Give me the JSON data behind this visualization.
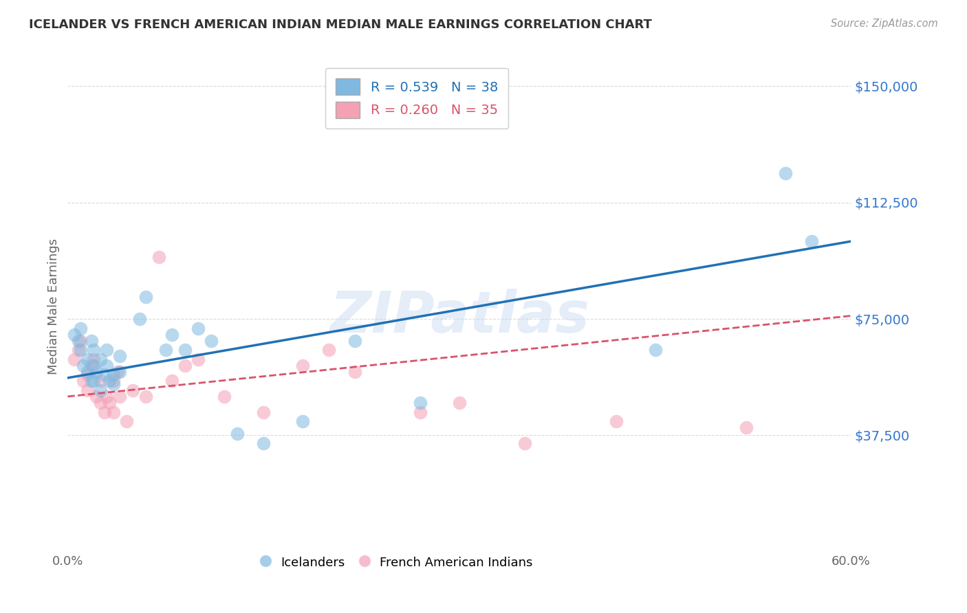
{
  "title": "ICELANDER VS FRENCH AMERICAN INDIAN MEDIAN MALE EARNINGS CORRELATION CHART",
  "source": "Source: ZipAtlas.com",
  "ylabel": "Median Male Earnings",
  "watermark": "ZIPatlas",
  "xlim": [
    0.0,
    0.6
  ],
  "ylim": [
    0,
    158000
  ],
  "yticks": [
    37500,
    75000,
    112500,
    150000
  ],
  "ytick_labels": [
    "$37,500",
    "$75,000",
    "$112,500",
    "$150,000"
  ],
  "xticks": [
    0.0,
    0.1,
    0.2,
    0.3,
    0.4,
    0.5,
    0.6
  ],
  "xtick_labels": [
    "0.0%",
    "",
    "",
    "",
    "",
    "",
    "60.0%"
  ],
  "blue_R": 0.539,
  "blue_N": 38,
  "pink_R": 0.26,
  "pink_N": 35,
  "blue_color": "#7fb9e0",
  "pink_color": "#f4a0b5",
  "blue_line_color": "#2171b5",
  "pink_line_color": "#d9536a",
  "grid_color": "#cccccc",
  "title_color": "#333333",
  "axis_label_color": "#666666",
  "ytick_color": "#3377cc",
  "xtick_color": "#666666",
  "bg_color": "#ffffff",
  "blue_scatter_x": [
    0.005,
    0.008,
    0.01,
    0.01,
    0.012,
    0.015,
    0.015,
    0.018,
    0.018,
    0.02,
    0.02,
    0.02,
    0.022,
    0.025,
    0.025,
    0.028,
    0.03,
    0.03,
    0.032,
    0.035,
    0.035,
    0.04,
    0.04,
    0.055,
    0.06,
    0.075,
    0.08,
    0.09,
    0.1,
    0.11,
    0.13,
    0.15,
    0.18,
    0.22,
    0.27,
    0.45,
    0.55,
    0.57
  ],
  "blue_scatter_y": [
    70000,
    68000,
    72000,
    65000,
    60000,
    62000,
    58000,
    68000,
    55000,
    65000,
    60000,
    55000,
    58000,
    62000,
    52000,
    57000,
    65000,
    60000,
    55000,
    57000,
    54000,
    63000,
    58000,
    75000,
    82000,
    65000,
    70000,
    65000,
    72000,
    68000,
    38000,
    35000,
    42000,
    68000,
    48000,
    65000,
    122000,
    100000
  ],
  "pink_scatter_x": [
    0.005,
    0.008,
    0.01,
    0.012,
    0.015,
    0.015,
    0.018,
    0.02,
    0.022,
    0.025,
    0.025,
    0.028,
    0.03,
    0.032,
    0.035,
    0.035,
    0.038,
    0.04,
    0.045,
    0.05,
    0.06,
    0.07,
    0.08,
    0.09,
    0.1,
    0.12,
    0.15,
    0.18,
    0.2,
    0.22,
    0.27,
    0.3,
    0.35,
    0.42,
    0.52
  ],
  "pink_scatter_y": [
    62000,
    65000,
    68000,
    55000,
    57000,
    52000,
    60000,
    62000,
    50000,
    55000,
    48000,
    45000,
    50000,
    48000,
    55000,
    45000,
    58000,
    50000,
    42000,
    52000,
    50000,
    95000,
    55000,
    60000,
    62000,
    50000,
    45000,
    60000,
    65000,
    58000,
    45000,
    48000,
    35000,
    42000,
    40000
  ],
  "blue_line_x0": 0.0,
  "blue_line_y0": 56000,
  "blue_line_x1": 0.6,
  "blue_line_y1": 100000,
  "pink_line_x0": 0.0,
  "pink_line_y0": 50000,
  "pink_line_x1": 0.6,
  "pink_line_y1": 76000
}
